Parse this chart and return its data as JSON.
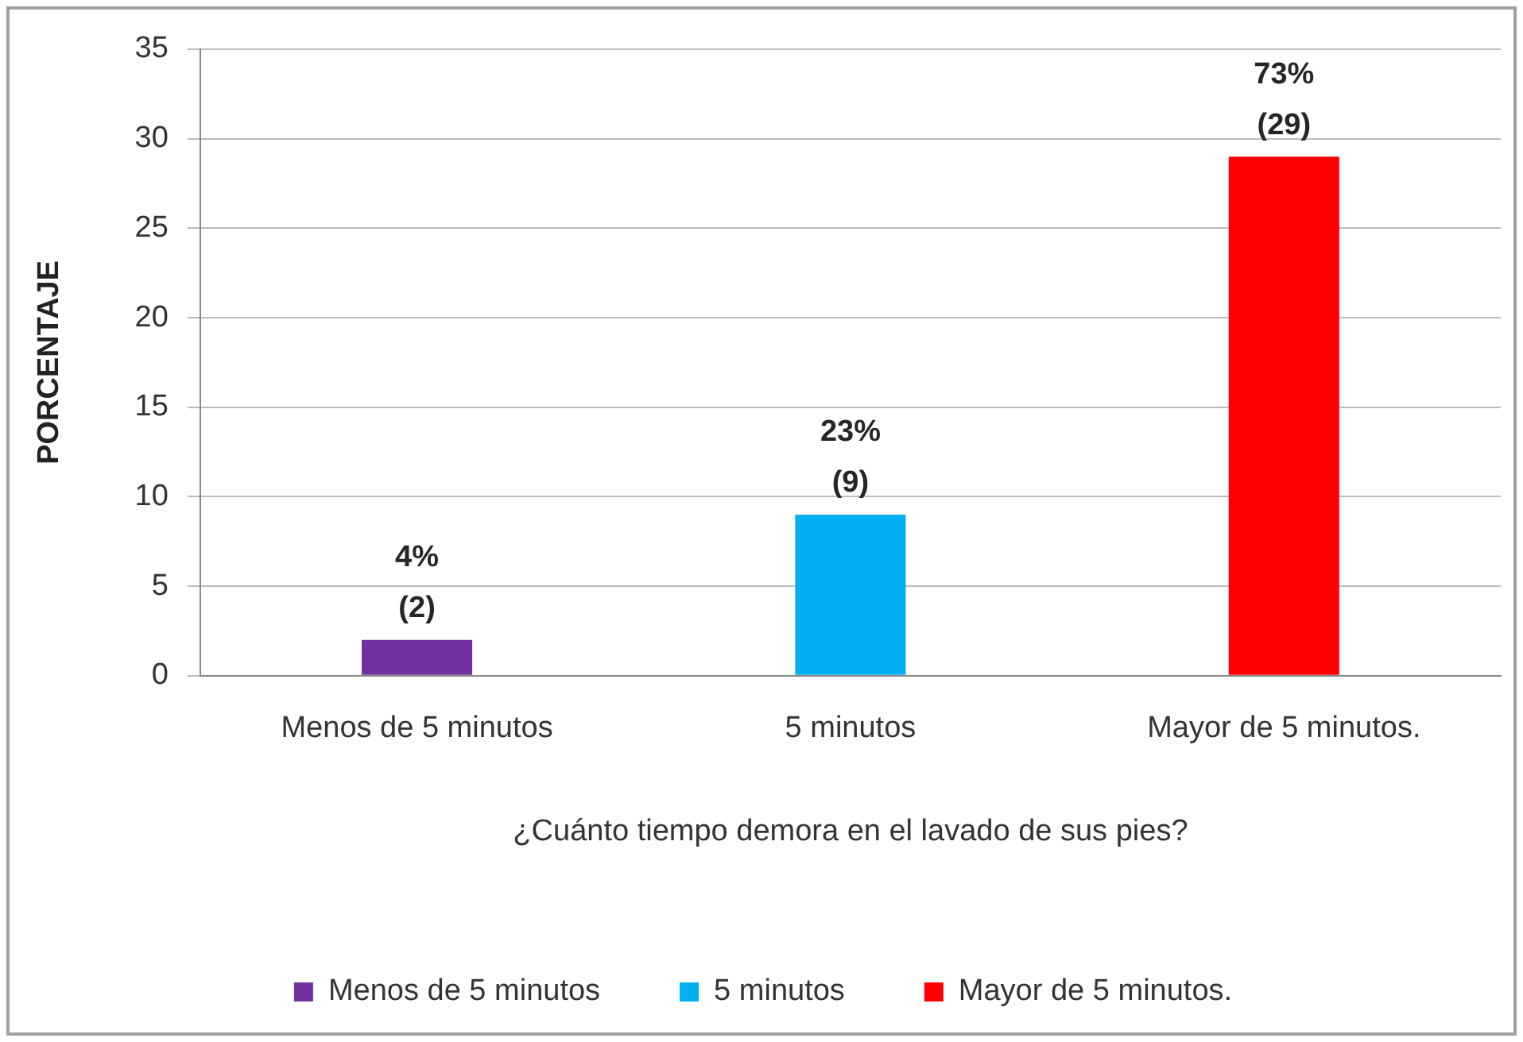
{
  "chart_data": {
    "type": "bar",
    "xlabel": "¿Cuánto tiempo demora en el lavado de sus pies?",
    "ylabel": "PORCENTAJE",
    "categories": [
      "Menos de 5 minutos",
      "5 minutos",
      "Mayor de 5 minutos."
    ],
    "series": [
      {
        "name": "Menos de 5 minutos",
        "color": "#7030a0",
        "values": [
          2,
          null,
          null
        ],
        "value_labels": [
          "4%\n(2)",
          null,
          null
        ]
      },
      {
        "name": "5 minutos",
        "color": "#00b0f0",
        "values": [
          null,
          9,
          null
        ],
        "value_labels": [
          null,
          "23%\n(9)",
          null
        ]
      },
      {
        "name": "Mayor de 5 minutos.",
        "color": "#ff0000",
        "values": [
          null,
          null,
          29
        ],
        "value_labels": [
          null,
          null,
          "73%\n(29)"
        ]
      }
    ],
    "ylim": [
      0,
      35
    ],
    "yticks": [
      0,
      5,
      10,
      15,
      20,
      25,
      30,
      35
    ],
    "grid": "y",
    "legend": "bottom"
  }
}
